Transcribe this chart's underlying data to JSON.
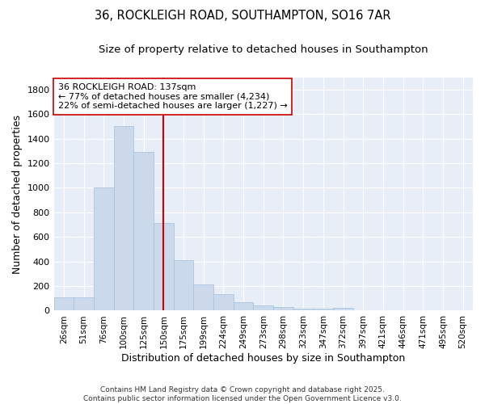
{
  "title_line1": "36, ROCKLEIGH ROAD, SOUTHAMPTON, SO16 7AR",
  "title_line2": "Size of property relative to detached houses in Southampton",
  "xlabel": "Distribution of detached houses by size in Southampton",
  "ylabel": "Number of detached properties",
  "categories": [
    "26sqm",
    "51sqm",
    "76sqm",
    "100sqm",
    "125sqm",
    "150sqm",
    "175sqm",
    "199sqm",
    "224sqm",
    "249sqm",
    "273sqm",
    "298sqm",
    "323sqm",
    "347sqm",
    "372sqm",
    "397sqm",
    "421sqm",
    "446sqm",
    "471sqm",
    "495sqm",
    "520sqm"
  ],
  "values": [
    110,
    110,
    1000,
    1500,
    1290,
    710,
    410,
    215,
    135,
    70,
    40,
    30,
    15,
    15,
    20,
    0,
    0,
    0,
    0,
    0,
    0
  ],
  "bar_color": "#ccd9ea",
  "bar_edge_color": "#aac4df",
  "vline_color": "#cc0000",
  "annotation_text": "36 ROCKLEIGH ROAD: 137sqm\n← 77% of detached houses are smaller (4,234)\n22% of semi-detached houses are larger (1,227) →",
  "annotation_box_color": "#ffffff",
  "annotation_box_edge": "#cc0000",
  "ylim": [
    0,
    1900
  ],
  "yticks": [
    0,
    200,
    400,
    600,
    800,
    1000,
    1200,
    1400,
    1600,
    1800
  ],
  "bg_color": "#ffffff",
  "plot_bg_color": "#e8eef8",
  "grid_color": "#ffffff",
  "footer_text": "Contains HM Land Registry data © Crown copyright and database right 2025.\nContains public sector information licensed under the Open Government Licence v3.0.",
  "title_fontsize": 10.5,
  "subtitle_fontsize": 9.5,
  "tick_fontsize": 7.5,
  "label_fontsize": 9,
  "footer_fontsize": 6.5
}
